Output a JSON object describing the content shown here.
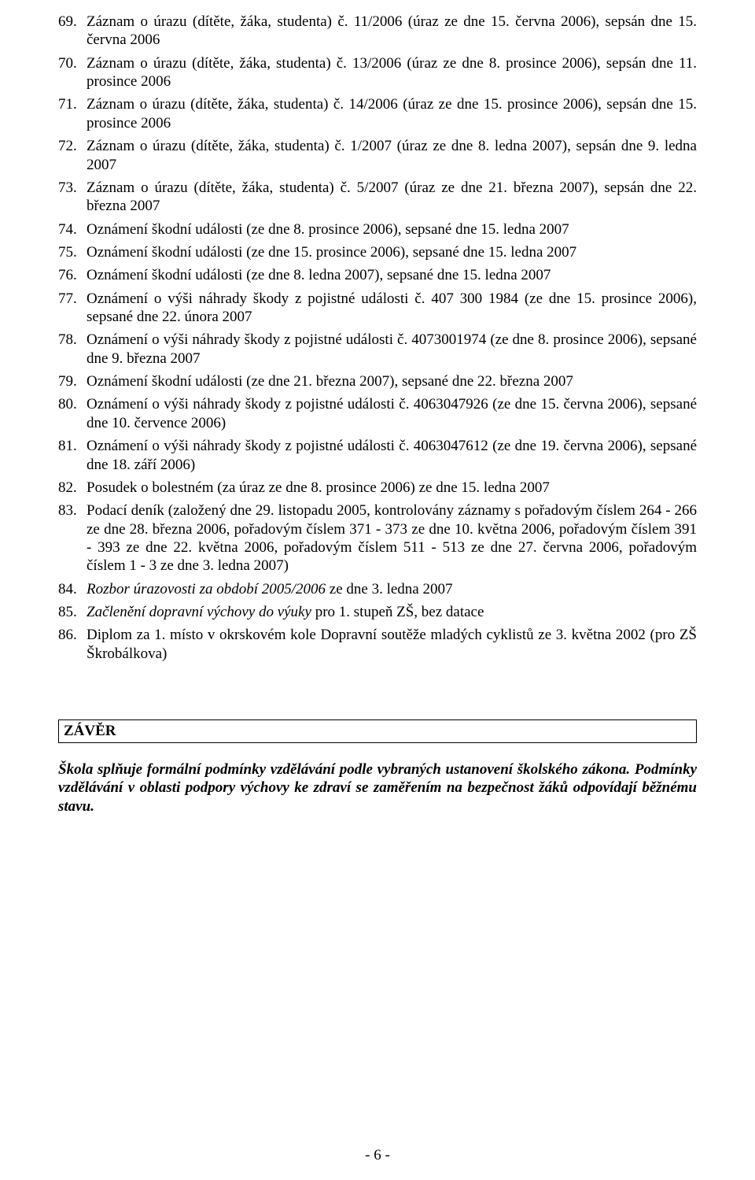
{
  "items": [
    {
      "n": "69.",
      "text": "Záznam o úrazu (dítěte, žáka, studenta) č. 11/2006 (úraz ze dne 15. června 2006), sepsán dne 15. června 2006"
    },
    {
      "n": "70.",
      "text": "Záznam o úrazu (dítěte, žáka, studenta) č. 13/2006 (úraz ze dne 8. prosince 2006), sepsán dne 11. prosince 2006"
    },
    {
      "n": "71.",
      "text": "Záznam o úrazu (dítěte, žáka, studenta) č. 14/2006 (úraz ze dne 15. prosince 2006), sepsán dne 15. prosince 2006"
    },
    {
      "n": "72.",
      "text": "Záznam o úrazu (dítěte, žáka, studenta) č. 1/2007 (úraz ze dne 8. ledna 2007), sepsán dne 9. ledna 2007"
    },
    {
      "n": "73.",
      "text": "Záznam o úrazu (dítěte, žáka, studenta) č. 5/2007 (úraz ze dne 21. března 2007), sepsán dne 22. března 2007"
    },
    {
      "n": "74.",
      "text": "Oznámení škodní události (ze dne 8. prosince 2006), sepsané dne 15. ledna 2007"
    },
    {
      "n": "75.",
      "text": "Oznámení škodní události (ze dne 15. prosince 2006), sepsané dne 15. ledna 2007"
    },
    {
      "n": "76.",
      "text": "Oznámení škodní události (ze dne 8. ledna 2007), sepsané dne 15. ledna 2007"
    },
    {
      "n": "77.",
      "text": "Oznámení o výši náhrady škody z pojistné události č. 407 300 1984 (ze dne 15. prosince 2006), sepsané dne 22. února 2007"
    },
    {
      "n": "78.",
      "text": "Oznámení o výši náhrady škody z pojistné události č. 4073001974 (ze dne 8. prosince 2006), sepsané dne 9. března 2007"
    },
    {
      "n": "79.",
      "text": "Oznámení škodní události (ze dne 21. března 2007), sepsané dne 22. března 2007"
    },
    {
      "n": "80.",
      "text": "Oznámení o výši náhrady škody z pojistné události č. 4063047926 (ze dne 15. června 2006), sepsané dne 10. července 2006)"
    },
    {
      "n": "81.",
      "text": "Oznámení o výši náhrady škody z pojistné události č. 4063047612 (ze dne 19. června 2006), sepsané dne 18. září 2006)"
    },
    {
      "n": "82.",
      "text": "Posudek o bolestném (za úraz ze dne 8. prosince 2006) ze dne 15. ledna 2007"
    },
    {
      "n": "83.",
      "text": "Podací deník (založený dne 29. listopadu 2005, kontrolovány záznamy s pořadovým číslem 264 - 266 ze dne 28. března 2006, pořadovým číslem 371 - 373 ze dne 10. května 2006, pořadovým číslem 391 - 393 ze dne 22. května 2006, pořadovým číslem 511 - 513 ze dne 27. června 2006, pořadovým číslem 1 - 3 ze dne 3. ledna 2007)"
    },
    {
      "n": "84.",
      "italic_prefix": "Rozbor úrazovosti za období 2005/2006",
      "tail": " ze dne 3. ledna 2007"
    },
    {
      "n": "85.",
      "italic_prefix": "Začlenění dopravní výchovy do výuky",
      "tail": " pro 1. stupeň ZŠ, bez datace"
    },
    {
      "n": "86.",
      "text": "Diplom za 1. místo v okrskovém kole Dopravní soutěže mladých cyklistů ze 3. května 2002 (pro ZŠ Škrobálkova)"
    }
  ],
  "zaver_heading": "ZÁVĚR",
  "zaver_paragraph": "Škola splňuje formální podmínky vzdělávání podle vybraných ustanovení školského zákona. Podmínky vzdělávání v oblasti podpory výchovy ke zdraví se zaměřením na bezpečnost žáků odpovídají běžnému stavu.",
  "page_footer": "- 6 -"
}
